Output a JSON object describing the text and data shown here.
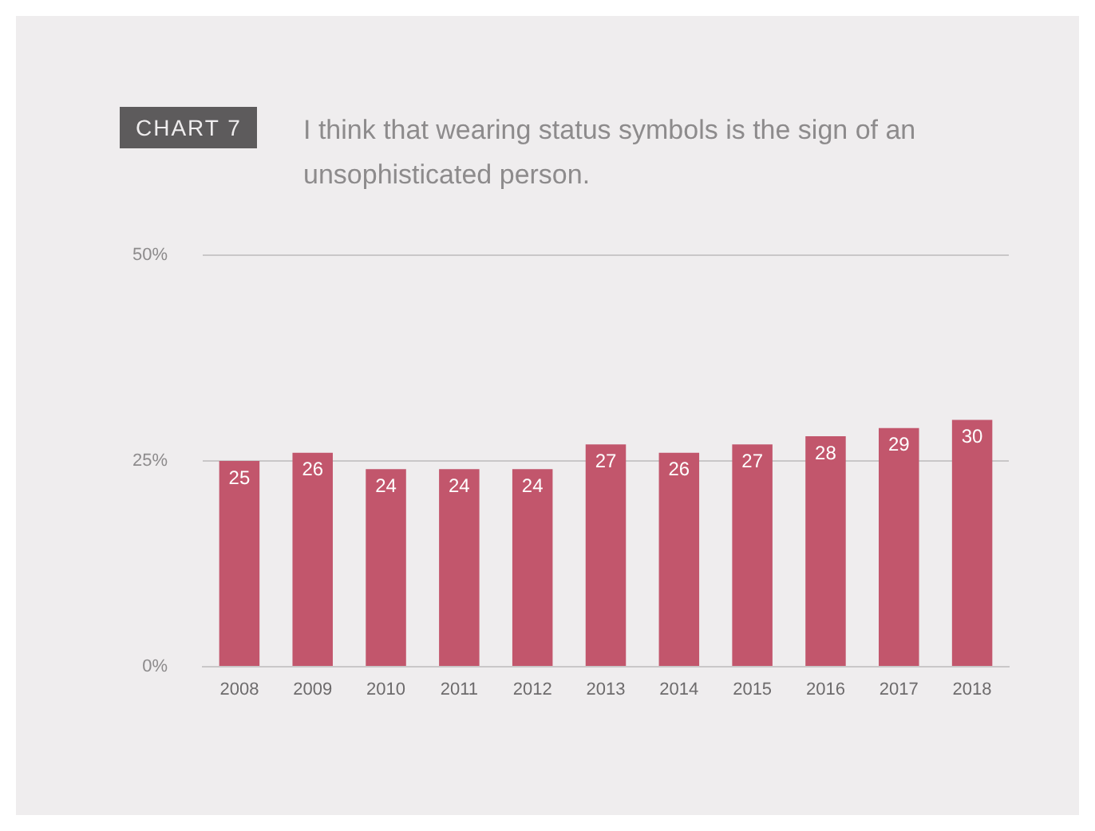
{
  "chart_data": {
    "type": "bar",
    "title": "CHART 7",
    "subtitle": "I think that wearing status symbols is the sign of an unsophisticated person.",
    "categories": [
      "2008",
      "2009",
      "2010",
      "2011",
      "2012",
      "2013",
      "2014",
      "2015",
      "2016",
      "2017",
      "2018"
    ],
    "values": [
      25,
      26,
      24,
      24,
      24,
      27,
      26,
      27,
      28,
      29,
      30
    ],
    "color": "#c2566c",
    "ylim": [
      0,
      50
    ],
    "yticks": [
      {
        "value": 0,
        "label": "0%"
      },
      {
        "value": 25,
        "label": "25%"
      },
      {
        "value": 50,
        "label": "50%"
      }
    ],
    "grid": "y",
    "data_labels": true
  }
}
